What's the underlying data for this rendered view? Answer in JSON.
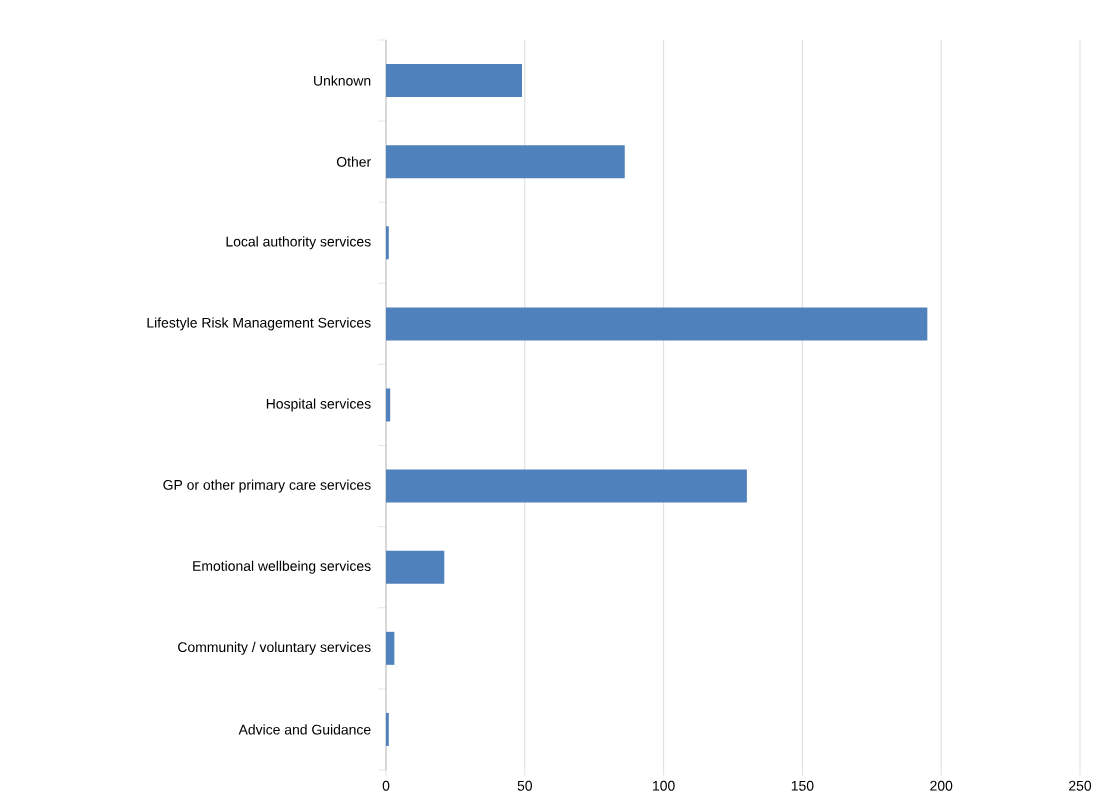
{
  "chart_data": {
    "type": "bar",
    "orientation": "horizontal",
    "categories": [
      "Unknown",
      "Other",
      "Local authority services",
      "Lifestyle Risk Management Services",
      "Hospital services",
      "GP or other primary care services",
      "Emotional wellbeing services",
      "Community / voluntary services",
      "Advice and Guidance"
    ],
    "values": [
      49,
      86,
      1,
      195,
      1.5,
      130,
      21,
      3,
      1
    ],
    "color": "#4f81bd",
    "xlim": [
      0,
      250
    ],
    "xticks": [
      0,
      50,
      100,
      150,
      200,
      250
    ],
    "grid": "x"
  }
}
